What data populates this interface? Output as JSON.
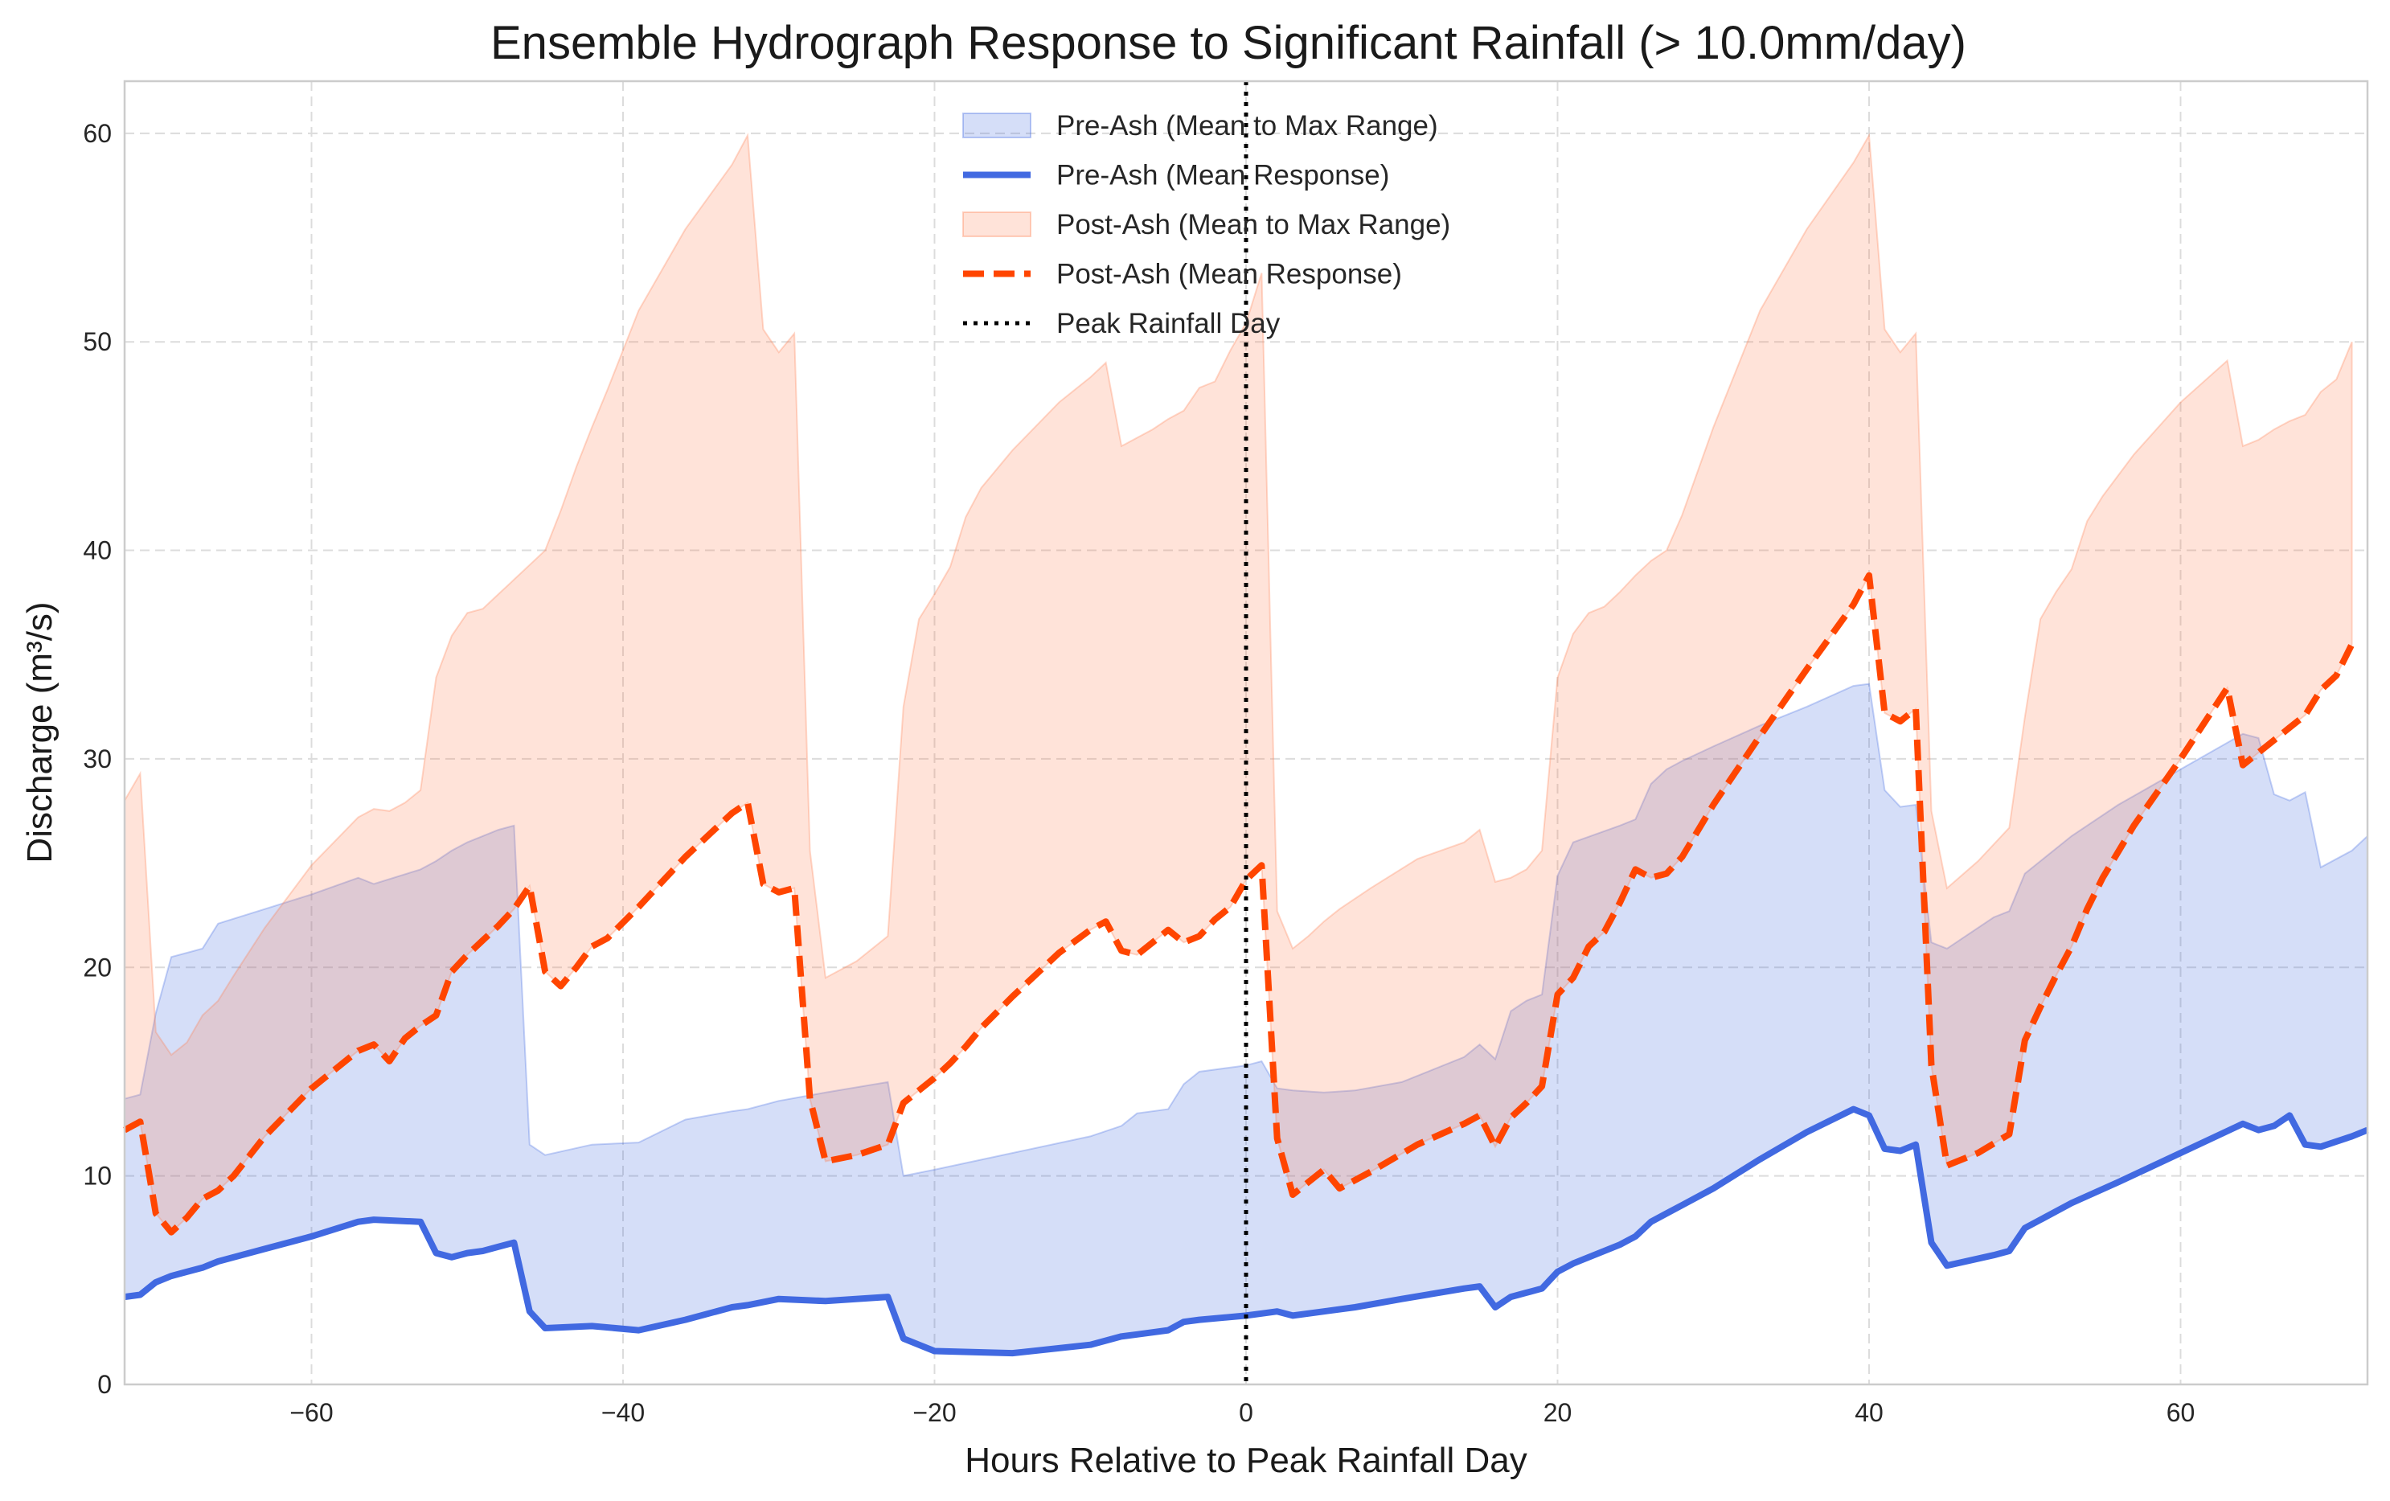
{
  "chart_data": {
    "type": "area",
    "title": "Ensemble Hydrograph Response to Significant Rainfall (> 10.0mm/day)",
    "xlabel": "Hours Relative to Peak Rainfall Day",
    "ylabel": "Discharge (m³/s)",
    "xlim": [
      -72,
      72
    ],
    "ylim": [
      0,
      62.5
    ],
    "xticks": [
      -60,
      -40,
      -20,
      0,
      20,
      40,
      60
    ],
    "xtick_labels": [
      "−60",
      "−40",
      "−20",
      "0",
      "20",
      "40",
      "60"
    ],
    "yticks": [
      0,
      10,
      20,
      30,
      40,
      50,
      60
    ],
    "ytick_labels": [
      "0",
      "10",
      "20",
      "30",
      "40",
      "50",
      "60"
    ],
    "grid": true,
    "legend_position": "top-center",
    "vline": {
      "x": 0,
      "label": "Peak Rainfall Day",
      "color": "#000000",
      "style": "dotted"
    },
    "series": [
      {
        "name": "Pre-Ash (Mean to Max Range)",
        "kind": "band",
        "color": "#4169e1",
        "x": [
          -72,
          -71,
          -70,
          -69,
          -68,
          -67,
          -66,
          -63,
          -60,
          -57,
          -56,
          -53,
          -52,
          -51,
          -50,
          -49,
          -48,
          -47,
          -46,
          -45,
          -42,
          -39,
          -36,
          -33,
          -32,
          -30,
          -27,
          -23,
          -22,
          -20,
          -15,
          -10,
          -8,
          -7,
          -5,
          -4,
          -3,
          0,
          1,
          2,
          3,
          5,
          7,
          10,
          14,
          15,
          16,
          17,
          18,
          19,
          20,
          21,
          24,
          25,
          26,
          27,
          28,
          30,
          33,
          36,
          39,
          40,
          41,
          42,
          43,
          44,
          45,
          48,
          49,
          50,
          53,
          56,
          60,
          64,
          65,
          66,
          67,
          68,
          69,
          71,
          72
        ],
        "lower": [
          4.2,
          4.3,
          4.9,
          5.2,
          5.4,
          5.6,
          5.9,
          6.5,
          7.1,
          7.8,
          7.9,
          7.8,
          6.3,
          6.1,
          6.3,
          6.4,
          6.6,
          6.8,
          3.5,
          2.7,
          2.8,
          2.6,
          3.1,
          3.7,
          3.8,
          4.1,
          4.0,
          4.2,
          2.2,
          1.6,
          1.5,
          1.9,
          2.3,
          2.4,
          2.6,
          3.0,
          3.1,
          3.3,
          3.4,
          3.5,
          3.3,
          3.5,
          3.7,
          4.1,
          4.6,
          4.7,
          3.7,
          4.2,
          4.4,
          4.6,
          5.4,
          5.8,
          6.7,
          7.1,
          7.8,
          8.2,
          8.6,
          9.4,
          10.8,
          12.1,
          13.2,
          12.9,
          11.3,
          11.2,
          11.5,
          6.8,
          5.7,
          6.2,
          6.4,
          7.5,
          8.7,
          9.7,
          11.1,
          12.5,
          12.2,
          12.4,
          12.9,
          11.5,
          11.4,
          11.9,
          12.2
        ],
        "upper": [
          13.7,
          13.9,
          17.8,
          20.5,
          20.7,
          20.9,
          22.1,
          22.8,
          23.5,
          24.3,
          24.0,
          24.7,
          25.1,
          25.6,
          26.0,
          26.3,
          26.6,
          26.8,
          11.5,
          11.0,
          11.5,
          11.6,
          12.7,
          13.1,
          13.2,
          13.6,
          14.0,
          14.5,
          10.0,
          10.3,
          11.1,
          11.9,
          12.4,
          13.0,
          13.2,
          14.4,
          15.0,
          15.3,
          15.5,
          14.2,
          14.1,
          14.0,
          14.1,
          14.5,
          15.7,
          16.3,
          15.6,
          17.9,
          18.4,
          18.7,
          24.4,
          26.0,
          26.8,
          27.1,
          28.8,
          29.5,
          29.9,
          30.6,
          31.6,
          32.5,
          33.5,
          33.6,
          28.5,
          27.7,
          27.8,
          21.2,
          20.9,
          22.4,
          22.7,
          24.5,
          26.3,
          27.8,
          29.5,
          31.2,
          31.0,
          28.3,
          28.0,
          28.4,
          24.8,
          25.6,
          26.3
        ]
      },
      {
        "name": "Pre-Ash (Mean Response)",
        "kind": "line",
        "color": "#4169e1",
        "style": "solid",
        "ref": "Pre-Ash (Mean to Max Range)"
      },
      {
        "name": "Post-Ash (Mean to Max Range)",
        "kind": "band",
        "color": "#ff7f50",
        "x": [
          -72,
          -71,
          -70,
          -69,
          -68,
          -67,
          -66,
          -65,
          -63,
          -60,
          -57,
          -56,
          -55,
          -54,
          -53,
          -52,
          -51,
          -50,
          -49,
          -48,
          -47,
          -46,
          -45,
          -44,
          -43,
          -42,
          -41,
          -39,
          -36,
          -33,
          -32,
          -31,
          -30,
          -29,
          -28,
          -27,
          -25,
          -23,
          -22,
          -21,
          -20,
          -19,
          -18,
          -17,
          -15,
          -12,
          -10,
          -9,
          -8,
          -7,
          -6,
          -5,
          -4,
          -3,
          -2,
          -1,
          0,
          1,
          2,
          3,
          4,
          5,
          6,
          8,
          11,
          14,
          15,
          16,
          17,
          18,
          19,
          20,
          21,
          22,
          23,
          24,
          25,
          26,
          27,
          28,
          30,
          33,
          36,
          39,
          40,
          41,
          42,
          43,
          44,
          45,
          47,
          49,
          50,
          51,
          52,
          53,
          54,
          55,
          57,
          60,
          63,
          64,
          65,
          66,
          67,
          68,
          69,
          70,
          71
        ],
        "lower": [
          12.2,
          12.6,
          8.2,
          7.3,
          8.0,
          8.9,
          9.3,
          10.0,
          11.9,
          14.2,
          16.0,
          16.3,
          15.5,
          16.6,
          17.2,
          17.7,
          19.8,
          20.6,
          21.3,
          22.0,
          22.8,
          23.9,
          19.8,
          19.1,
          20.0,
          21.0,
          21.4,
          22.9,
          25.3,
          27.4,
          27.9,
          24.0,
          23.6,
          23.8,
          13.7,
          10.7,
          11.0,
          11.5,
          13.5,
          14.1,
          14.7,
          15.4,
          16.2,
          17.1,
          18.6,
          20.7,
          21.8,
          22.2,
          20.8,
          20.6,
          21.2,
          21.8,
          21.2,
          21.5,
          22.3,
          22.9,
          24.2,
          24.9,
          11.8,
          9.1,
          9.7,
          10.3,
          9.4,
          10.2,
          11.5,
          12.5,
          12.9,
          11.4,
          12.8,
          13.5,
          14.3,
          18.7,
          19.5,
          21.0,
          21.7,
          23.1,
          24.7,
          24.3,
          24.5,
          25.3,
          27.8,
          31.1,
          34.3,
          37.4,
          38.8,
          32.2,
          31.8,
          32.4,
          15.3,
          10.5,
          11.1,
          12.0,
          16.5,
          18.1,
          19.6,
          21.0,
          22.8,
          24.3,
          26.8,
          30.0,
          33.4,
          29.7,
          30.3,
          30.9,
          31.5,
          32.1,
          33.3,
          34.0,
          35.5
        ],
        "upper": [
          28.0,
          29.3,
          16.9,
          15.8,
          16.4,
          17.7,
          18.4,
          19.6,
          21.9,
          24.9,
          27.2,
          27.6,
          27.5,
          27.9,
          28.5,
          33.9,
          35.9,
          37.0,
          37.2,
          37.9,
          38.6,
          39.3,
          40.0,
          41.9,
          44.0,
          45.9,
          47.7,
          51.5,
          55.4,
          58.5,
          59.9,
          50.6,
          49.5,
          50.4,
          25.6,
          19.5,
          20.3,
          21.5,
          32.5,
          36.7,
          37.9,
          39.2,
          41.6,
          43.0,
          44.8,
          47.1,
          48.3,
          49.0,
          45.0,
          45.4,
          45.8,
          46.3,
          46.7,
          47.8,
          48.1,
          49.6,
          50.9,
          53.3,
          22.7,
          20.9,
          21.5,
          22.2,
          22.8,
          23.8,
          25.2,
          26.0,
          26.6,
          24.1,
          24.3,
          24.7,
          25.6,
          33.9,
          36.0,
          37.0,
          37.3,
          38.0,
          38.8,
          39.5,
          40.0,
          41.7,
          45.9,
          51.5,
          55.4,
          58.6,
          59.9,
          50.6,
          49.5,
          50.4,
          27.5,
          23.8,
          25.1,
          26.7,
          32.0,
          36.7,
          38.0,
          39.1,
          41.4,
          42.6,
          44.6,
          47.1,
          49.1,
          45.0,
          45.3,
          45.8,
          46.2,
          46.5,
          47.6,
          48.2,
          50.0
        ]
      },
      {
        "name": "Post-Ash (Mean Response)",
        "kind": "line",
        "color": "#ff4500",
        "style": "dashed",
        "ref": "Post-Ash (Mean to Max Range)"
      }
    ]
  }
}
